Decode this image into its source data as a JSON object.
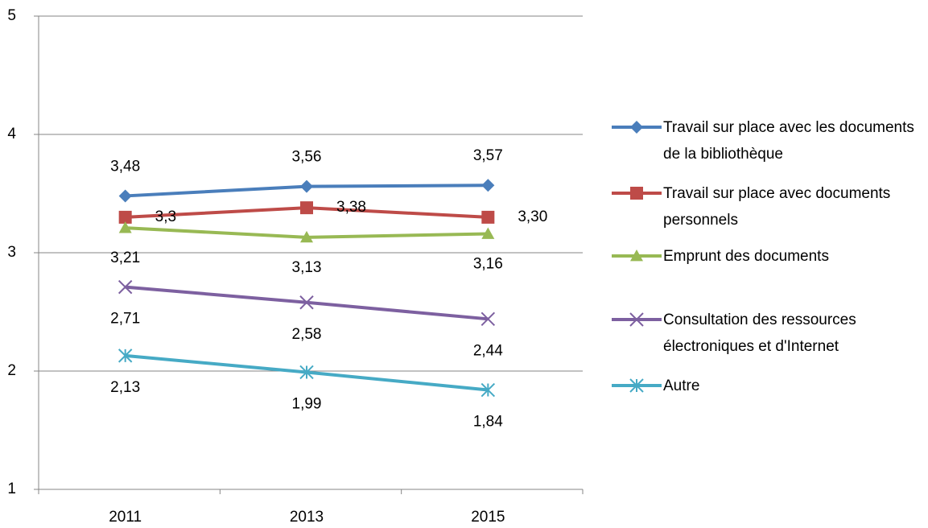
{
  "chart_data": {
    "type": "line",
    "categories": [
      "2011",
      "2013",
      "2015"
    ],
    "ylim": [
      1,
      5
    ],
    "yticks": [
      1,
      2,
      3,
      4,
      5
    ],
    "grid": true,
    "series": [
      {
        "name": "Travail sur place avec les documents de la bibliothèque",
        "color": "#4a7ebb",
        "marker": "diamond",
        "values": [
          3.48,
          3.56,
          3.57
        ],
        "value_labels": [
          "3,48",
          "3,56",
          "3,57"
        ]
      },
      {
        "name": "Travail sur place avec documents personnels",
        "color": "#be4b48",
        "marker": "square",
        "values": [
          3.3,
          3.38,
          3.3
        ],
        "value_labels": [
          "3,3",
          "3,38",
          "3,30"
        ]
      },
      {
        "name": "Emprunt des documents",
        "color": "#98b954",
        "marker": "triangle",
        "values": [
          3.21,
          3.13,
          3.16
        ],
        "value_labels": [
          "3,21",
          "3,13",
          "3,16"
        ]
      },
      {
        "name": "Consultation des ressources électroniques et d'Internet",
        "color": "#7d60a0",
        "marker": "x",
        "values": [
          2.71,
          2.58,
          2.44
        ],
        "value_labels": [
          "2,71",
          "2,58",
          "2,44"
        ]
      },
      {
        "name": "Autre",
        "color": "#46aac5",
        "marker": "star",
        "values": [
          2.13,
          1.99,
          1.84
        ],
        "value_labels": [
          "2,13",
          "1,99",
          "1,84"
        ]
      }
    ]
  }
}
